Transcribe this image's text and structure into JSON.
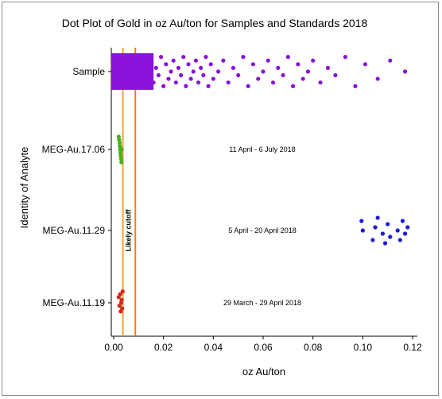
{
  "chart_data": {
    "type": "scatter",
    "title": "Dot Plot of Gold in oz Au/ton for Samples and Standards 2018",
    "xlabel": "oz Au/ton",
    "ylabel": "Identity of Analyte",
    "xlim": [
      0.0,
      0.12
    ],
    "xticks": [
      "0.00",
      "0.02",
      "0.04",
      "0.06",
      "0.08",
      "0.10",
      "0.12"
    ],
    "categories": [
      "Sample",
      "MEG-Au.17.06",
      "MEG-Au.11.29",
      "MEG-Au.11.19"
    ],
    "series": [
      {
        "category": "Sample",
        "color": "#8a14d9",
        "x": [
          0.001,
          0.002,
          0.003,
          0.004,
          0.005,
          0.006,
          0.007,
          0.008,
          0.009,
          0.01,
          0.011,
          0.012,
          0.013,
          0.014,
          0.015,
          0.016,
          0.017,
          0.018,
          0.019,
          0.02,
          0.021,
          0.022,
          0.023,
          0.024,
          0.025,
          0.026,
          0.027,
          0.028,
          0.029,
          0.03,
          0.031,
          0.032,
          0.033,
          0.034,
          0.035,
          0.036,
          0.037,
          0.038,
          0.039,
          0.04,
          0.042,
          0.044,
          0.046,
          0.048,
          0.05,
          0.052,
          0.054,
          0.056,
          0.058,
          0.06,
          0.062,
          0.064,
          0.066,
          0.068,
          0.07,
          0.072,
          0.074,
          0.076,
          0.078,
          0.08,
          0.083,
          0.086,
          0.089,
          0.093,
          0.097,
          0.101,
          0.106,
          0.111,
          0.117
        ],
        "jitter": [
          0.1,
          0.7,
          0.3,
          0.9,
          0.5,
          0.2,
          0.8,
          0.4,
          0.6,
          0.1,
          0.9,
          0.3,
          0.7,
          0.5,
          0.2,
          0.8,
          0.4,
          0.6,
          0.1,
          0.9,
          0.3,
          0.7,
          0.5,
          0.2,
          0.8,
          0.4,
          0.6,
          0.1,
          0.9,
          0.3,
          0.7,
          0.5,
          0.2,
          0.8,
          0.4,
          0.6,
          0.1,
          0.9,
          0.3,
          0.7,
          0.5,
          0.2,
          0.8,
          0.4,
          0.6,
          0.1,
          0.9,
          0.3,
          0.7,
          0.5,
          0.2,
          0.8,
          0.4,
          0.6,
          0.1,
          0.9,
          0.3,
          0.7,
          0.5,
          0.2,
          0.8,
          0.4,
          0.6,
          0.1,
          0.9,
          0.3,
          0.7,
          0.2,
          0.5
        ]
      },
      {
        "category": "MEG-Au.17.06",
        "color": "#4caf1a",
        "x": [
          0.002,
          0.0022,
          0.0024,
          0.0025,
          0.0026,
          0.0027,
          0.0028,
          0.003,
          0.0031,
          0.0032
        ],
        "jitter": [
          0.1,
          0.2,
          0.3,
          0.4,
          0.5,
          0.6,
          0.7,
          0.8,
          0.9,
          0.5
        ]
      },
      {
        "category": "MEG-Au.11.29",
        "color": "#1a1ad6",
        "x": [
          0.0995,
          0.1,
          0.104,
          0.105,
          0.106,
          0.108,
          0.109,
          0.11,
          0.111,
          0.114,
          0.115,
          0.116,
          0.117,
          0.118
        ],
        "jitter": [
          0.2,
          0.5,
          0.8,
          0.4,
          0.1,
          0.6,
          0.9,
          0.3,
          0.7,
          0.5,
          0.8,
          0.2,
          0.6,
          0.4
        ]
      },
      {
        "category": "MEG-Au.11.19",
        "color": "#d62a1a",
        "x": [
          0.002,
          0.0023,
          0.0026,
          0.0028,
          0.003,
          0.0032,
          0.0034,
          0.0036
        ],
        "jitter": [
          0.3,
          0.6,
          0.2,
          0.8,
          0.5,
          0.4,
          0.7,
          0.1
        ]
      }
    ],
    "reference_lines": [
      {
        "x": 0.0037,
        "color": "#f0a43a",
        "label": ""
      },
      {
        "x": 0.0087,
        "color": "#f07a1a",
        "label": "Likely cutoff"
      }
    ],
    "annotations": [
      {
        "category": "MEG-Au.17.06",
        "text": "11 April - 6 July 2018"
      },
      {
        "category": "MEG-Au.11.29",
        "text": "5 April - 20 April 2018"
      },
      {
        "category": "MEG-Au.11.19",
        "text": "29 March - 29 April 2018"
      }
    ],
    "grid": false,
    "legend": "none"
  }
}
